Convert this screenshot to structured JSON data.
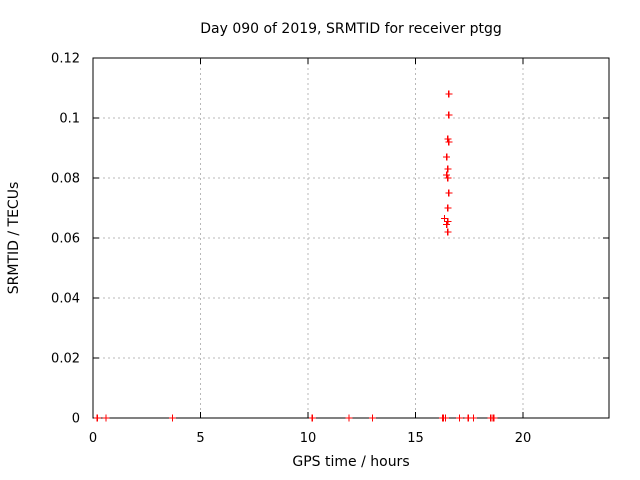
{
  "figure": {
    "title": "Day 090 of 2019, SRMTID for receiver ptgg",
    "xlabel": "GPS time / hours",
    "ylabel": "SRMTID / TECUs"
  },
  "chart_data": {
    "type": "scatter",
    "title": "Day 090 of 2019, SRMTID for receiver ptgg",
    "xlabel": "GPS time / hours",
    "ylabel": "SRMTID / TECUs",
    "xlim": [
      0,
      24
    ],
    "ylim": [
      0,
      0.12
    ],
    "xticks": [
      0,
      5,
      10,
      15,
      20
    ],
    "yticks": [
      0,
      0.02,
      0.04,
      0.06,
      0.08,
      0.1,
      0.12
    ],
    "grid": true,
    "legend": "none",
    "marker": "plus",
    "colors": {
      "marker": "#ff0000",
      "grid": "#b8b8b8",
      "axis": "#000000",
      "background": "#ffffff"
    },
    "series": [
      {
        "name": "SRMTID",
        "points": [
          [
            0.2,
            0
          ],
          [
            0.6,
            0
          ],
          [
            3.7,
            0
          ],
          [
            10.2,
            0
          ],
          [
            11.9,
            0
          ],
          [
            13.0,
            0
          ],
          [
            16.25,
            0
          ],
          [
            16.3,
            0
          ],
          [
            16.4,
            0
          ],
          [
            17.05,
            0
          ],
          [
            17.45,
            0
          ],
          [
            17.7,
            0
          ],
          [
            18.5,
            0
          ],
          [
            18.6,
            0
          ],
          [
            18.65,
            0
          ],
          [
            16.5,
            0.062
          ],
          [
            16.45,
            0.0645
          ],
          [
            16.5,
            0.0655
          ],
          [
            16.35,
            0.0665
          ],
          [
            16.5,
            0.07
          ],
          [
            16.55,
            0.075
          ],
          [
            16.5,
            0.08
          ],
          [
            16.45,
            0.081
          ],
          [
            16.5,
            0.083
          ],
          [
            16.45,
            0.087
          ],
          [
            16.55,
            0.092
          ],
          [
            16.5,
            0.093
          ],
          [
            16.55,
            0.101
          ],
          [
            16.55,
            0.108
          ]
        ]
      }
    ]
  }
}
